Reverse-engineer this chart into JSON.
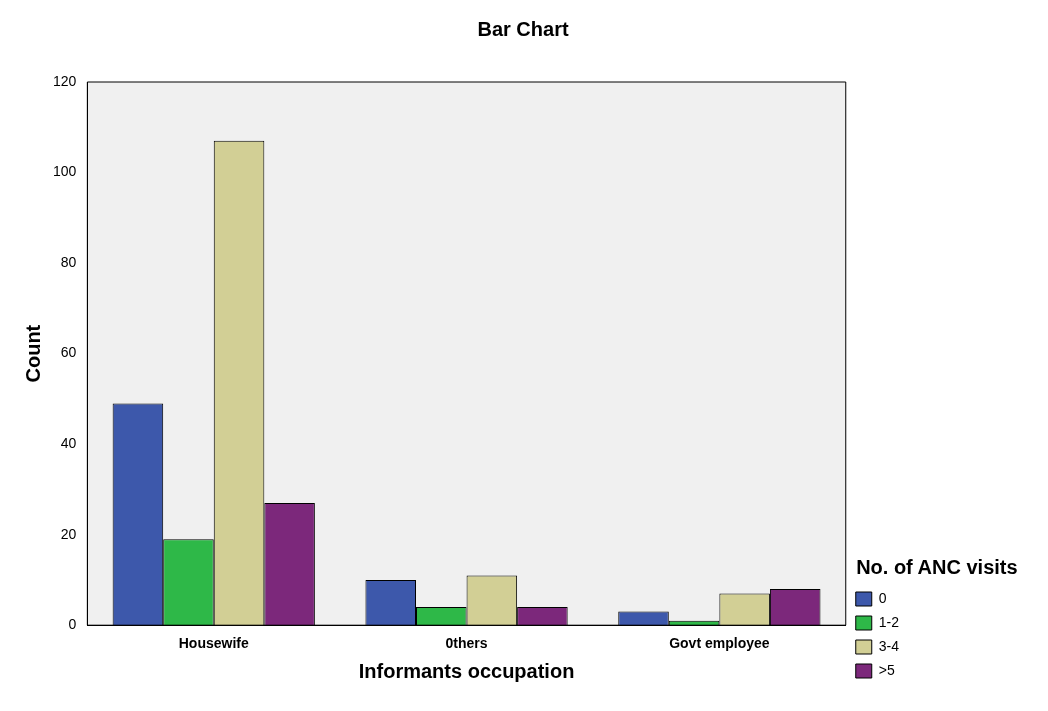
{
  "chart_data": {
    "type": "bar",
    "title": "Bar Chart",
    "xlabel": "Informants occupation",
    "ylabel": "Count",
    "legend_title": "No. of ANC visits",
    "categories": [
      "Housewife",
      "0thers",
      "Govt employee"
    ],
    "series": [
      {
        "name": "0",
        "color": "#3d58ab",
        "values": [
          49,
          10,
          3
        ]
      },
      {
        "name": "1-2",
        "color": "#2eb848",
        "values": [
          19,
          4,
          1
        ]
      },
      {
        "name": "3-4",
        "color": "#d2cf95",
        "values": [
          107,
          11,
          7
        ]
      },
      {
        "name": ">5",
        "color": "#7c287b",
        "values": [
          27,
          4,
          8
        ]
      }
    ],
    "ylim": [
      0,
      120
    ],
    "yticks": [
      0,
      20,
      40,
      60,
      80,
      100,
      120
    ],
    "grid": false,
    "legend": "bottom right"
  }
}
